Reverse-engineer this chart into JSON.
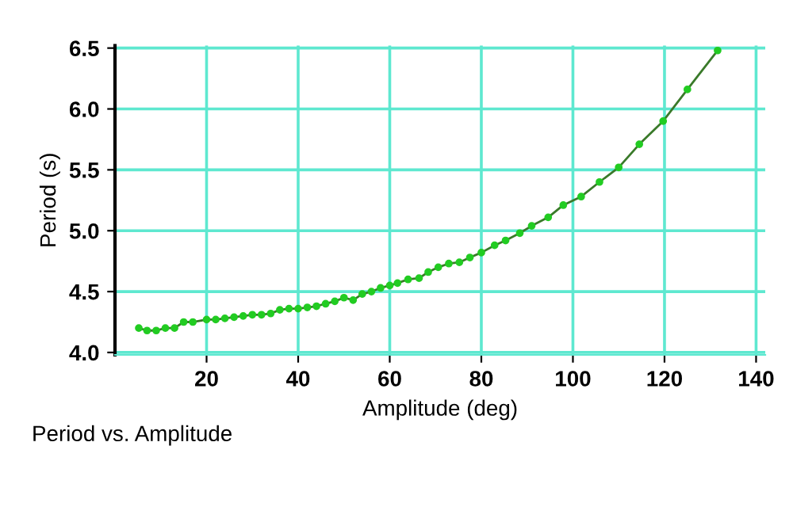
{
  "chart_data": {
    "type": "line",
    "xlabel": "Amplitude (deg)",
    "ylabel": "Period (s)",
    "annotations": [
      "Period vs. Amplitude"
    ],
    "xlim": [
      0,
      142
    ],
    "ylim": [
      3.98,
      6.52
    ],
    "xticks": [
      20,
      40,
      60,
      80,
      100,
      120,
      140
    ],
    "yticks": [
      {
        "value": 4.0,
        "label": "4.0"
      },
      4.5,
      {
        "value": 5.0,
        "label": "5.0"
      },
      5.5,
      {
        "value": 6.0,
        "label": "6.0"
      },
      6.5
    ],
    "grid": true,
    "marker": "circle",
    "line_style": "solid",
    "series": [
      {
        "color": "#22cc22",
        "x": [
          5.2,
          7,
          9,
          11,
          13,
          15,
          17,
          20,
          22,
          24,
          26,
          28,
          30,
          32,
          34,
          36,
          38,
          40,
          42,
          44,
          46,
          48,
          50,
          52,
          54,
          56,
          58,
          60,
          61.7,
          64,
          66.4,
          68.4,
          70.6,
          72.9,
          75.2,
          77.5,
          80,
          82.9,
          85.3,
          88.4,
          91,
          94.6,
          97.9,
          101.8,
          105.8,
          110,
          114.5,
          119.7,
          125,
          131.6
        ],
        "values": [
          4.2,
          4.18,
          4.18,
          4.2,
          4.2,
          4.25,
          4.25,
          4.27,
          4.27,
          4.28,
          4.29,
          4.3,
          4.31,
          4.31,
          4.32,
          4.35,
          4.36,
          4.36,
          4.37,
          4.38,
          4.4,
          4.42,
          4.45,
          4.43,
          4.48,
          4.5,
          4.53,
          4.55,
          4.57,
          4.6,
          4.61,
          4.66,
          4.7,
          4.73,
          4.74,
          4.78,
          4.82,
          4.88,
          4.92,
          4.98,
          5.04,
          5.11,
          5.21,
          5.28,
          5.4,
          5.52,
          5.71,
          5.9,
          6.16,
          6.48
        ]
      }
    ]
  }
}
